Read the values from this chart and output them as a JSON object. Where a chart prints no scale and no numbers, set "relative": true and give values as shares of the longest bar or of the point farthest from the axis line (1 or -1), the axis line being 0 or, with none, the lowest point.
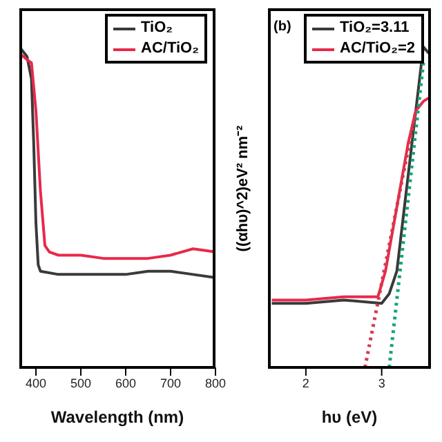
{
  "chart_data": [
    {
      "type": "line",
      "xlabel": "Wavelength (nm)",
      "xlim": [
        363,
        800
      ],
      "xticks": [
        400,
        500,
        600,
        700,
        800
      ],
      "relative": true,
      "tick_labels": "x",
      "legend": "top right",
      "series": [
        {
          "name": "TiO₂",
          "color": "#3a3a3a",
          "x": [
            363,
            380,
            390,
            395,
            400,
            405,
            410,
            450,
            500,
            550,
            600,
            650,
            700,
            750,
            800
          ],
          "values": [
            1.0,
            0.97,
            0.9,
            0.7,
            0.45,
            0.32,
            0.3,
            0.29,
            0.29,
            0.29,
            0.29,
            0.3,
            0.3,
            0.29,
            0.28
          ]
        },
        {
          "name": "AC/TiO₂",
          "color": "#e8294a",
          "x": [
            363,
            380,
            390,
            400,
            410,
            420,
            430,
            450,
            500,
            550,
            600,
            650,
            700,
            750,
            800
          ],
          "values": [
            0.98,
            0.96,
            0.95,
            0.8,
            0.55,
            0.38,
            0.36,
            0.35,
            0.35,
            0.34,
            0.34,
            0.34,
            0.35,
            0.37,
            0.36
          ]
        }
      ]
    },
    {
      "type": "line",
      "xlabel": "hυ (eV)",
      "ylabel": "((αhυ)^2)eV² nm⁻²",
      "xlim": [
        1.5,
        3.65
      ],
      "xticks": [
        2,
        3
      ],
      "relative": true,
      "tick_labels": "x",
      "legend": "top",
      "annotations": [
        "(b)"
      ],
      "series": [
        {
          "name": "TiO₂=3.11",
          "color": "#3a3a3a",
          "x": [
            1.55,
            2.0,
            2.5,
            3.0,
            3.1,
            3.2,
            3.3,
            3.4,
            3.5,
            3.55,
            3.62
          ],
          "values": [
            0.2,
            0.2,
            0.21,
            0.2,
            0.23,
            0.3,
            0.5,
            0.7,
            0.9,
            1.0,
            0.98
          ]
        },
        {
          "name": "AC/TiO₂=2",
          "color": "#e8294a",
          "x": [
            1.55,
            2.0,
            2.5,
            2.95,
            3.05,
            3.2,
            3.35,
            3.45,
            3.55,
            3.62
          ],
          "values": [
            0.21,
            0.21,
            0.22,
            0.22,
            0.3,
            0.5,
            0.7,
            0.8,
            0.83,
            0.84
          ]
        },
        {
          "type": "line",
          "color": "#d23b4e",
          "line_style": "dotted",
          "x": [
            2.78,
            3.45
          ],
          "values": [
            0,
            0.8
          ]
        },
        {
          "type": "line",
          "color": "#16a37a",
          "line_style": "dotted",
          "x": [
            3.1,
            3.55
          ],
          "values": [
            0,
            0.95
          ]
        }
      ]
    }
  ]
}
